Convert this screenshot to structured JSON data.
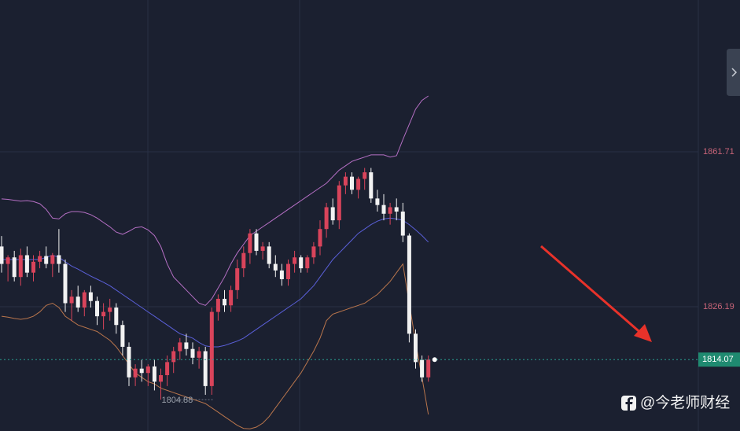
{
  "chart_data": {
    "type": "candlestick",
    "ylim": [
      1797.7,
      1896.5
    ],
    "yticks": [
      1861.71,
      1826.19
    ],
    "grid": true,
    "up_color": "#d9445b",
    "down_color": "#f2f2f2",
    "ohlc": [
      [
        1840,
        1842.4,
        1834,
        1836
      ],
      [
        1836,
        1838,
        1832,
        1837.5
      ],
      [
        1837.5,
        1839,
        1832,
        1833
      ],
      [
        1833,
        1839.5,
        1831,
        1838
      ],
      [
        1838,
        1840,
        1833,
        1834
      ],
      [
        1834,
        1838,
        1832,
        1836.5
      ],
      [
        1836.5,
        1839,
        1835,
        1837.8
      ],
      [
        1837.8,
        1840,
        1835,
        1836
      ],
      [
        1836,
        1838.5,
        1833,
        1838
      ],
      [
        1838,
        1844,
        1834,
        1836
      ],
      [
        1836,
        1837,
        1825,
        1827
      ],
      [
        1827,
        1830,
        1823,
        1828.5
      ],
      [
        1828.5,
        1831,
        1825,
        1826
      ],
      [
        1826,
        1830,
        1824,
        1829.5
      ],
      [
        1829.5,
        1831,
        1826,
        1827.5
      ],
      [
        1827.5,
        1828.5,
        1822,
        1824
      ],
      [
        1824,
        1827,
        1821,
        1825
      ],
      [
        1825,
        1828,
        1823,
        1826
      ],
      [
        1826,
        1827,
        1820,
        1822
      ],
      [
        1822,
        1823,
        1815,
        1817
      ],
      [
        1817,
        1818,
        1808,
        1810
      ],
      [
        1810,
        1813,
        1808,
        1812
      ],
      [
        1812,
        1814,
        1809,
        1811
      ],
      [
        1811,
        1813,
        1808,
        1812.5
      ],
      [
        1812.5,
        1814,
        1807,
        1809
      ],
      [
        1809,
        1812,
        1804.88,
        1810.5
      ],
      [
        1810.5,
        1815,
        1808,
        1813.5
      ],
      [
        1813.5,
        1817,
        1811,
        1816
      ],
      [
        1816,
        1819,
        1814,
        1818
      ],
      [
        1818,
        1820,
        1815,
        1816.5
      ],
      [
        1816.5,
        1818,
        1813,
        1814.5
      ],
      [
        1814.5,
        1817,
        1812,
        1816
      ],
      [
        1816,
        1817,
        1806,
        1808
      ],
      [
        1808,
        1826,
        1806,
        1825
      ],
      [
        1825,
        1829,
        1823,
        1828
      ],
      [
        1828,
        1830,
        1825,
        1826.5
      ],
      [
        1826.5,
        1831,
        1825,
        1830
      ],
      [
        1830,
        1837,
        1828,
        1835
      ],
      [
        1835,
        1840,
        1833,
        1838.5
      ],
      [
        1838.5,
        1844,
        1836,
        1843
      ],
      [
        1843,
        1844,
        1838,
        1839
      ],
      [
        1839,
        1841,
        1837,
        1840
      ],
      [
        1840,
        1841,
        1835,
        1836
      ],
      [
        1836,
        1838,
        1833,
        1834.5
      ],
      [
        1834.5,
        1836,
        1831,
        1832.5
      ],
      [
        1832.5,
        1837,
        1831,
        1836
      ],
      [
        1836,
        1839,
        1834,
        1837.5
      ],
      [
        1837.5,
        1838,
        1834,
        1835
      ],
      [
        1835,
        1838,
        1834,
        1837.5
      ],
      [
        1837.5,
        1841,
        1836,
        1840
      ],
      [
        1840,
        1846,
        1838,
        1844
      ],
      [
        1844,
        1850,
        1842,
        1849
      ],
      [
        1849,
        1851,
        1845,
        1846
      ],
      [
        1846,
        1855,
        1844,
        1854
      ],
      [
        1854,
        1857,
        1852,
        1856
      ],
      [
        1856,
        1857,
        1852,
        1853
      ],
      [
        1853,
        1856,
        1851,
        1855.5
      ],
      [
        1855.5,
        1858,
        1853,
        1857
      ],
      [
        1857,
        1858,
        1850,
        1851
      ],
      [
        1851,
        1853,
        1848,
        1849.5
      ],
      [
        1849.5,
        1852,
        1846,
        1847.5
      ],
      [
        1847.5,
        1850,
        1845,
        1849
      ],
      [
        1849,
        1851,
        1846,
        1848
      ],
      [
        1848,
        1850,
        1841,
        1842.5
      ],
      [
        1842.5,
        1843,
        1818,
        1820
      ],
      [
        1820,
        1821,
        1812,
        1813.5
      ],
      [
        1814,
        1815,
        1809,
        1810
      ],
      [
        1810,
        1815,
        1809,
        1814.07
      ]
    ],
    "bands": [
      {
        "color": "#b56fc4",
        "values": [
          1850.9,
          1850.8,
          1850.6,
          1850.4,
          1850.5,
          1850.3,
          1849.8,
          1848.5,
          1846.5,
          1846.3,
          1847.5,
          1848,
          1848,
          1847.8,
          1847.3,
          1846.5,
          1845.5,
          1844.5,
          1843.3,
          1842.8,
          1843.5,
          1844.3,
          1844.5,
          1843.8,
          1842.5,
          1840,
          1836,
          1833,
          1831.5,
          1830,
          1828.5,
          1827,
          1826.5,
          1828,
          1830.5,
          1833,
          1836,
          1838.5,
          1840.5,
          1842.5,
          1843.5,
          1844.5,
          1845.5,
          1846.5,
          1847.5,
          1848.5,
          1849.5,
          1850.5,
          1851.5,
          1852.5,
          1853.5,
          1854.5,
          1856,
          1857.5,
          1858.5,
          1859.5,
          1860,
          1860.5,
          1861,
          1861,
          1861,
          1860.5,
          1860.8,
          1864.5,
          1868,
          1871.5,
          1873.5,
          1874.5
        ]
      },
      {
        "color": "#5a5fd8",
        "values": [
          1837,
          1837,
          1837,
          1837,
          1837,
          1837,
          1837,
          1837.5,
          1838,
          1837.5,
          1836.5,
          1835.5,
          1834.8,
          1834,
          1833.2,
          1832.5,
          1831.8,
          1831,
          1830,
          1829,
          1828,
          1827,
          1826,
          1825,
          1824,
          1823,
          1822,
          1821,
          1820,
          1819.5,
          1819,
          1818,
          1817.2,
          1817,
          1817,
          1817.3,
          1817.8,
          1818.3,
          1819,
          1820,
          1821,
          1822,
          1823,
          1824,
          1825,
          1826,
          1827,
          1828,
          1829.5,
          1831,
          1833,
          1835,
          1837,
          1838.5,
          1840,
          1841.5,
          1843,
          1844,
          1845,
          1845.8,
          1846.3,
          1846.5,
          1846.3,
          1846,
          1845,
          1843.8,
          1842.5,
          1841
        ]
      },
      {
        "color": "#b9754c",
        "values": [
          1824,
          1823.8,
          1823.5,
          1823.3,
          1823.5,
          1824,
          1825,
          1826.5,
          1827,
          1826,
          1824,
          1823,
          1822,
          1821.5,
          1821,
          1820.5,
          1819.5,
          1818.5,
          1817,
          1815,
          1813,
          1811,
          1810,
          1809,
          1808.5,
          1807.5,
          1807,
          1806.5,
          1806,
          1805.5,
          1805,
          1804.5,
          1804,
          1803,
          1802,
          1801,
          1800,
          1799,
          1798.3,
          1798.2,
          1798.6,
          1799.5,
          1801,
          1803,
          1805,
          1807,
          1809,
          1811,
          1813.5,
          1816,
          1819,
          1823,
          1824.5,
          1825,
          1825.5,
          1826,
          1826.5,
          1827,
          1828,
          1829,
          1830.5,
          1832,
          1834,
          1836,
          1827,
          1818,
          1810,
          1801.5
        ]
      }
    ],
    "last_price": 1814.07,
    "low": 1804.88,
    "low_index": 25,
    "watermark": "@今老师财经"
  }
}
